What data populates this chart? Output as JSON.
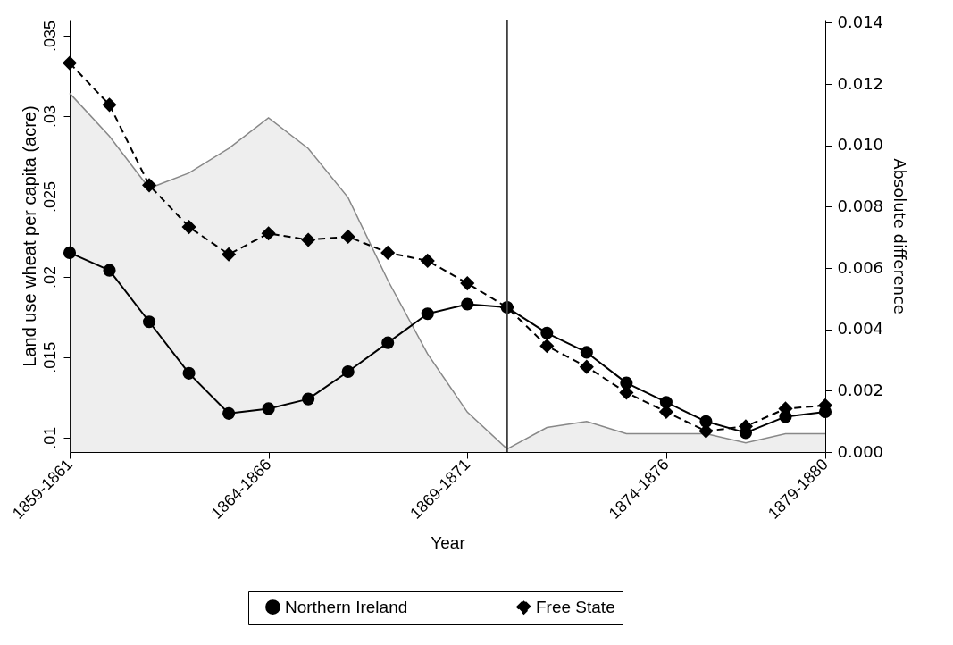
{
  "chart_data": {
    "type": "line",
    "xlabel": "Year",
    "ylabel": "Land use wheat per capita (acre)",
    "y2label": "Absolute difference",
    "categories": [
      "1859-1861",
      null,
      null,
      null,
      null,
      "1864-1866",
      null,
      null,
      null,
      null,
      "1869-1871",
      null,
      null,
      null,
      null,
      "1874-1876",
      null,
      null,
      null,
      "1879-1880"
    ],
    "ylim": [
      0.0091,
      0.036
    ],
    "yticks": [
      {
        "value": 0.01,
        "label": ".01"
      },
      {
        "value": 0.015,
        "label": ".015"
      },
      {
        "value": 0.02,
        "label": ".02"
      },
      {
        "value": 0.025,
        "label": ".025"
      },
      {
        "value": 0.03,
        "label": ".03"
      },
      {
        "value": 0.035,
        "label": ".035"
      }
    ],
    "y2lim": [
      0,
      0.0141
    ],
    "y2ticks": [
      {
        "value": 0,
        "label": "0.000"
      },
      {
        "value": 0.002,
        "label": "0.002"
      },
      {
        "value": 0.004,
        "label": "0.004"
      },
      {
        "value": 0.006,
        "label": "0.006"
      },
      {
        "value": 0.008,
        "label": "0.008"
      },
      {
        "value": 0.01,
        "label": "0.010"
      },
      {
        "value": 0.012,
        "label": "0.012"
      },
      {
        "value": 0.014,
        "label": "0.014"
      }
    ],
    "series": [
      {
        "name": "Northern Ireland",
        "color": "#000000",
        "marker": "circle",
        "line_style": "solid",
        "values": [
          0.0215,
          0.0204,
          0.0172,
          0.014,
          0.0115,
          0.0118,
          0.0124,
          0.0141,
          0.0159,
          0.0177,
          0.0183,
          0.0181,
          0.0165,
          0.0153,
          0.0134,
          0.0122,
          0.011,
          0.0103,
          0.0113,
          0.0116
        ]
      },
      {
        "name": "Free State",
        "color": "#000000",
        "marker": "diamond",
        "line_style": "dashed",
        "values": [
          0.0333,
          0.0307,
          0.0257,
          0.0231,
          0.0214,
          0.0227,
          0.0223,
          0.0225,
          0.0215,
          0.021,
          0.0196,
          0.0181,
          0.0157,
          0.0144,
          0.0128,
          0.0116,
          0.0104,
          0.0107,
          0.0118,
          0.012
        ]
      },
      {
        "type": "area",
        "axis": "y2",
        "color": "#888888",
        "values": [
          0.0117,
          0.0103,
          0.0086,
          0.0091,
          0.0099,
          0.0109,
          0.0099,
          0.0083,
          0.0056,
          0.0032,
          0.0013,
          0.0001,
          0.0008,
          0.001,
          0.0006,
          0.0006,
          0.0006,
          0.0003,
          0.0006,
          0.0006
        ]
      }
    ],
    "legend": "bottom"
  }
}
